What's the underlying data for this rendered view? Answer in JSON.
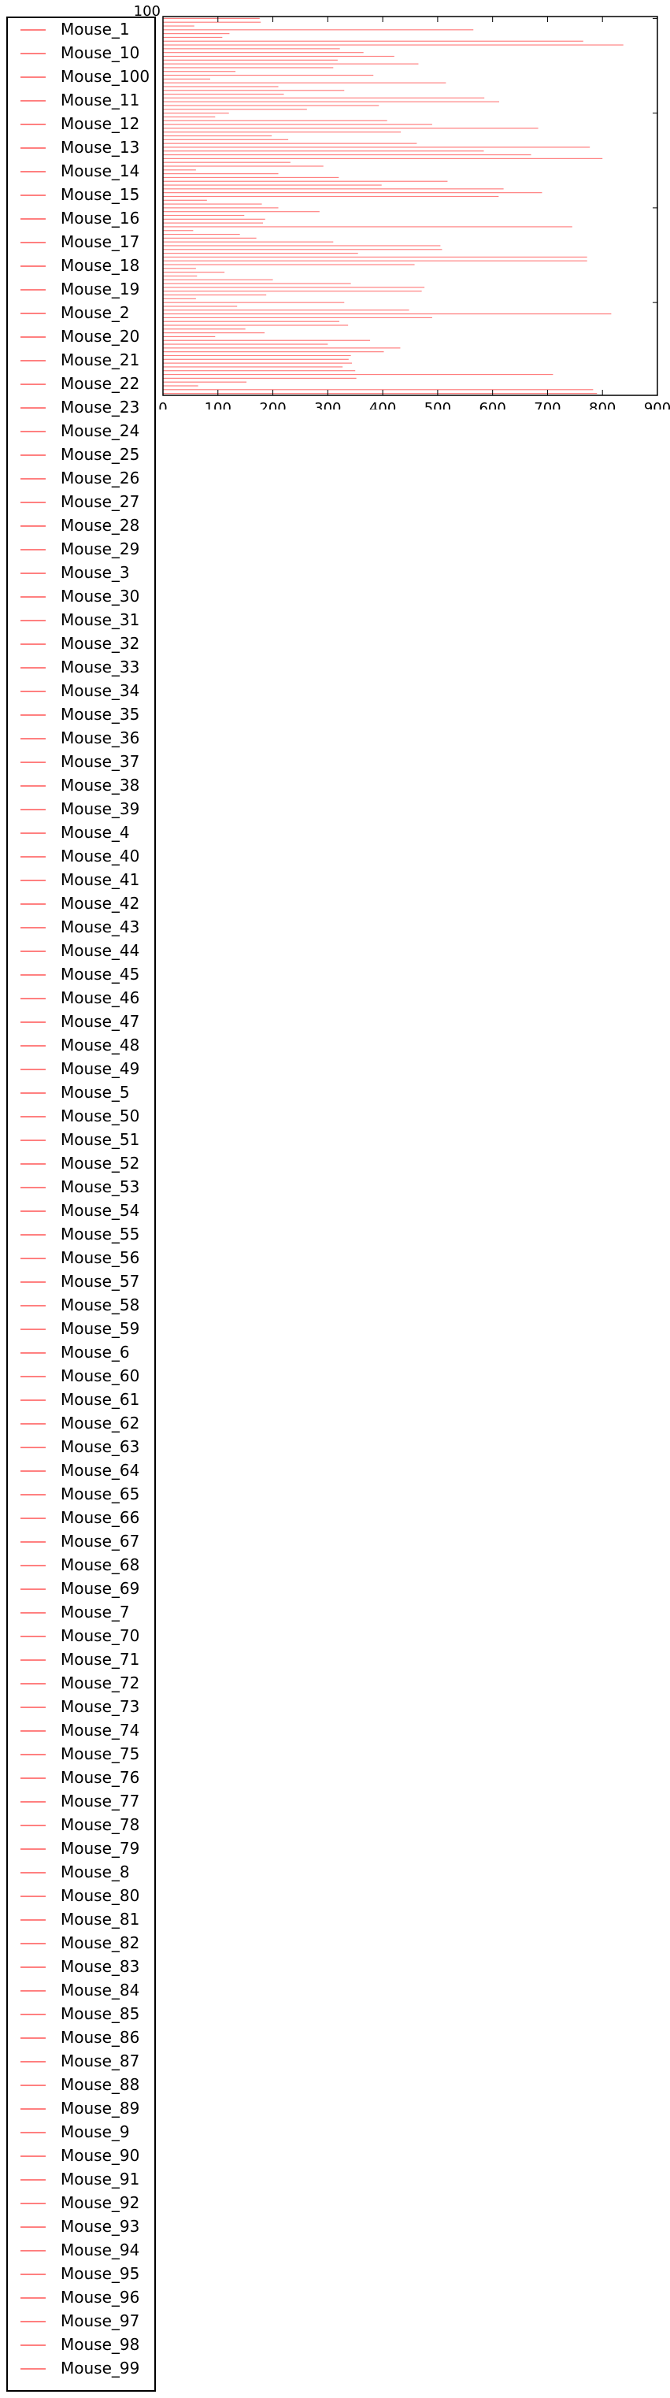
{
  "chart_data": {
    "type": "bar",
    "orientation": "horizontal",
    "title": "",
    "xlabel": "",
    "ylabel": "",
    "xlim": [
      0,
      900
    ],
    "x_ticks": [
      0,
      100,
      200,
      300,
      400,
      500,
      600,
      700,
      800,
      900
    ],
    "y_visible_tick": "100",
    "grid": false,
    "bar_color": "#ff8080",
    "legend_position": "left-outside",
    "categories": [
      "Mouse_1",
      "Mouse_10",
      "Mouse_100",
      "Mouse_11",
      "Mouse_12",
      "Mouse_13",
      "Mouse_14",
      "Mouse_15",
      "Mouse_16",
      "Mouse_17",
      "Mouse_18",
      "Mouse_19",
      "Mouse_2",
      "Mouse_20",
      "Mouse_21",
      "Mouse_22",
      "Mouse_23",
      "Mouse_24",
      "Mouse_25",
      "Mouse_26",
      "Mouse_27",
      "Mouse_28",
      "Mouse_29",
      "Mouse_3",
      "Mouse_30",
      "Mouse_31",
      "Mouse_32",
      "Mouse_33",
      "Mouse_34",
      "Mouse_35",
      "Mouse_36",
      "Mouse_37",
      "Mouse_38",
      "Mouse_39",
      "Mouse_4",
      "Mouse_40",
      "Mouse_41",
      "Mouse_42",
      "Mouse_43",
      "Mouse_44",
      "Mouse_45",
      "Mouse_46",
      "Mouse_47",
      "Mouse_48",
      "Mouse_49",
      "Mouse_5",
      "Mouse_50",
      "Mouse_51",
      "Mouse_52",
      "Mouse_53",
      "Mouse_54",
      "Mouse_55",
      "Mouse_56",
      "Mouse_57",
      "Mouse_58",
      "Mouse_59",
      "Mouse_6",
      "Mouse_60",
      "Mouse_61",
      "Mouse_62",
      "Mouse_63",
      "Mouse_64",
      "Mouse_65",
      "Mouse_66",
      "Mouse_67",
      "Mouse_68",
      "Mouse_69",
      "Mouse_7",
      "Mouse_70",
      "Mouse_71",
      "Mouse_72",
      "Mouse_73",
      "Mouse_74",
      "Mouse_75",
      "Mouse_76",
      "Mouse_77",
      "Mouse_78",
      "Mouse_79",
      "Mouse_8",
      "Mouse_80",
      "Mouse_81",
      "Mouse_82",
      "Mouse_83",
      "Mouse_84",
      "Mouse_85",
      "Mouse_86",
      "Mouse_87",
      "Mouse_88",
      "Mouse_89",
      "Mouse_9",
      "Mouse_90",
      "Mouse_91",
      "Mouse_92",
      "Mouse_93",
      "Mouse_94",
      "Mouse_95",
      "Mouse_96",
      "Mouse_97",
      "Mouse_98",
      "Mouse_99"
    ],
    "values": [
      176,
      178,
      57,
      565,
      121,
      108,
      765,
      838,
      322,
      365,
      421,
      318,
      465,
      310,
      132,
      383,
      86,
      515,
      210,
      330,
      220,
      585,
      612,
      393,
      262,
      120,
      95,
      408,
      490,
      683,
      433,
      198,
      228,
      462,
      777,
      584,
      670,
      800,
      232,
      292,
      60,
      210,
      320,
      518,
      398,
      620,
      690,
      611,
      80,
      180,
      210,
      285,
      148,
      186,
      182,
      745,
      55,
      140,
      170,
      310,
      505,
      508,
      355,
      772,
      772,
      458,
      60,
      112,
      62,
      200,
      342,
      476,
      471,
      188,
      60,
      330,
      135,
      448,
      816,
      490,
      321,
      337,
      150,
      185,
      95,
      377,
      300,
      432,
      402,
      342,
      338,
      344,
      327,
      350,
      710,
      352,
      152,
      64,
      783,
      790
    ]
  }
}
